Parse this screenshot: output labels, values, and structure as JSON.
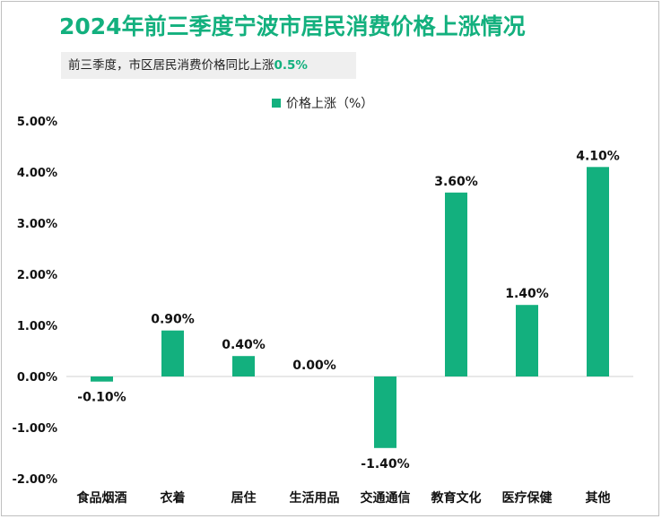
{
  "title": "2024年前三季度宁波市居民消费价格上涨情况",
  "subtitle": {
    "text": "前三季度，市区居民消费价格同比上涨",
    "highlight": "0.5%"
  },
  "colors": {
    "accent": "#13b07e",
    "bar": "#13b07e"
  },
  "chart_data": {
    "type": "bar",
    "categories": [
      "食品烟酒",
      "衣着",
      "居住",
      "生活用品",
      "交通通信",
      "教育文化",
      "医疗保健",
      "其他"
    ],
    "series": [
      {
        "name": "价格上涨（%）",
        "values": [
          -0.1,
          0.9,
          0.4,
          0.0,
          -1.4,
          3.6,
          1.4,
          4.1
        ]
      }
    ],
    "data_labels": [
      "-0.10%",
      "0.90%",
      "0.40%",
      "0.00%",
      "-1.40%",
      "3.60%",
      "1.40%",
      "4.10%"
    ],
    "ylim": [
      -2,
      5
    ],
    "yticks": [
      5,
      4,
      3,
      2,
      1,
      0,
      -1,
      -2
    ],
    "ytick_labels": [
      "5.00%",
      "4.00%",
      "3.00%",
      "2.00%",
      "1.00%",
      "0.00%",
      "-1.00%",
      "-2.00%"
    ],
    "legend_position": "top-center",
    "grid": false
  }
}
